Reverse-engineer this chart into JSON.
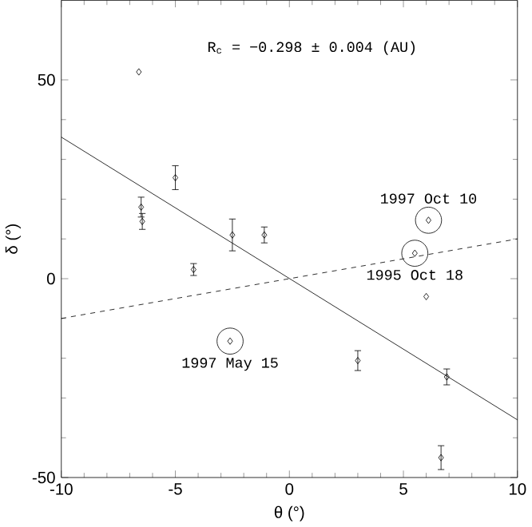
{
  "chart_data": {
    "type": "scatter",
    "xlabel": "θ (°)",
    "ylabel": "δ (°)",
    "xlim": [
      -10,
      10
    ],
    "ylim": [
      -50,
      70
    ],
    "xticks": [
      -10,
      -5,
      0,
      5,
      10
    ],
    "yticks": [
      -50,
      0,
      50
    ],
    "annotations": [
      "R$_{c}$ = −0.298 ± 0.004 (AU)",
      {
        "text": "1997 Oct 10",
        "x": 6.1,
        "y": 14.7
      },
      {
        "text": "1995 Oct 18",
        "x": 5.5,
        "y": 6.4
      },
      {
        "text": "1997 May 15",
        "x": -2.6,
        "y": -15.7
      }
    ],
    "series": [
      {
        "marker": "diamond",
        "color": "#000000",
        "x": [
          -6.6,
          -5.0,
          -6.5,
          -6.45,
          -2.5,
          -1.1,
          -4.2,
          -2.6,
          3.0,
          6.9,
          6.65,
          6.0,
          5.5,
          6.1
        ],
        "values": [
          52,
          25.4,
          18,
          14.4,
          11,
          11,
          2.3,
          -15.7,
          -20.6,
          -24.7,
          -45,
          -4.5,
          6.4,
          14.7
        ],
        "errors": [
          null,
          3,
          2.5,
          2,
          4,
          2,
          1.5,
          null,
          2.5,
          2,
          3,
          null,
          null,
          null
        ]
      },
      {
        "type": "line",
        "color": "#000000",
        "line_style": "solid",
        "x": [
          -10,
          10
        ],
        "values": [
          35.6,
          -35.5
        ]
      },
      {
        "type": "line",
        "color": "#000000",
        "line_style": "dashed",
        "x": [
          -10,
          10
        ],
        "values": [
          -10,
          10
        ]
      }
    ]
  }
}
